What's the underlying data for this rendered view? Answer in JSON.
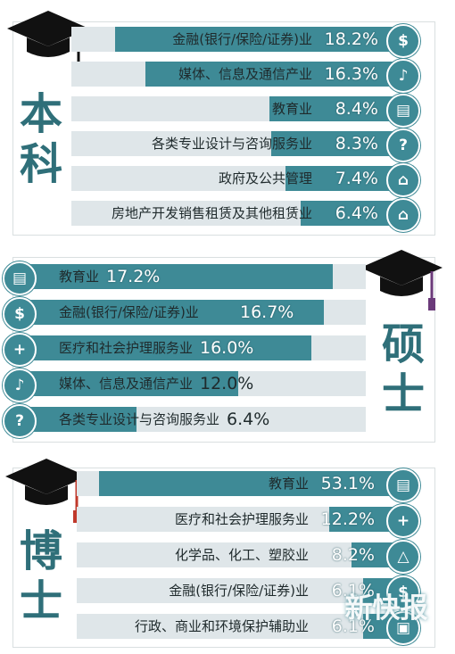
{
  "colors": {
    "bar": "#3e8a96",
    "track": "#dfe6e9",
    "degree_text": "#2f6f79"
  },
  "chart_data": [
    {
      "type": "bar",
      "orientation": "horizontal",
      "group_title": "本科",
      "categories": [
        "金融(银行/保险/证券)业",
        "媒体、信息及通信产业",
        "教育业",
        "各类专业设计与咨询服务业",
        "政府及公共管理",
        "房地产开发销售租赁及其他租赁业"
      ],
      "value_labels": [
        "18.2%",
        "16.3%",
        "8.4%",
        "8.3%",
        "7.4%",
        "6.4%"
      ],
      "values": [
        18.2,
        16.3,
        8.4,
        8.3,
        7.4,
        6.4
      ],
      "icons": [
        "money-bag-icon",
        "microphone-icon",
        "book-icon",
        "question-icon",
        "government-building-icon",
        "house-icon"
      ],
      "grid": false
    },
    {
      "type": "bar",
      "orientation": "horizontal",
      "group_title": "硕士",
      "categories": [
        "教育业",
        "金融(银行/保险/证券)业",
        "医疗和社会护理服务业",
        "媒体、信息及通信产业",
        "各类专业设计与咨询服务业"
      ],
      "value_labels": [
        "17.2%",
        "16.7%",
        "16.0%",
        "12.0%",
        "6.4%"
      ],
      "values": [
        17.2,
        16.7,
        16.0,
        12.0,
        6.4
      ],
      "icons": [
        "book-icon",
        "money-bag-icon",
        "medical-cross-icon",
        "microphone-icon",
        "question-icon"
      ],
      "grid": false
    },
    {
      "type": "bar",
      "orientation": "horizontal",
      "group_title": "博士",
      "categories": [
        "教育业",
        "医疗和社会护理服务业",
        "化学品、化工、塑胶业",
        "金融(银行/保险/证券)业",
        "行政、商业和环境保护辅助业"
      ],
      "value_labels": [
        "53.1%",
        "12.2%",
        "8.2%",
        "6.1%",
        "6.1%"
      ],
      "values": [
        53.1,
        12.2,
        8.2,
        6.1,
        6.1
      ],
      "icons": [
        "book-icon",
        "medical-cross-icon",
        "flask-icon",
        "money-bag-icon",
        "briefcase-icon"
      ],
      "grid": false
    }
  ],
  "watermark": "新快报"
}
